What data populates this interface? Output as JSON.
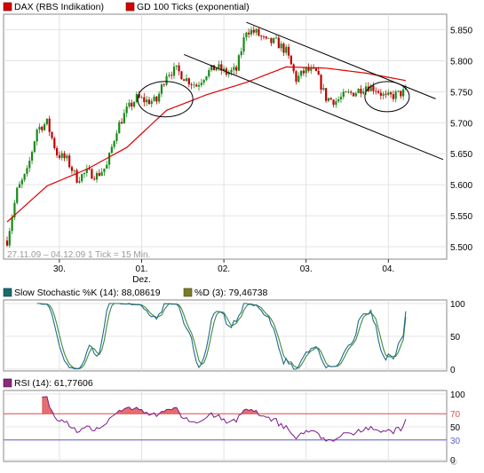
{
  "charts": {
    "price": {
      "legend": [
        {
          "label": "DAX (RBS Indikation)",
          "color": "#d40000"
        },
        {
          "label": "GD 100 Ticks (exponential)",
          "color": "#d40000"
        }
      ],
      "y_ticks": [
        "5.850",
        "5.800",
        "5.750",
        "5.700",
        "5.650",
        "5.600",
        "5.550",
        "5.500"
      ],
      "x_ticks": [
        "30.",
        "01.",
        "02.",
        "03.",
        "04."
      ],
      "x_sublabel": "Dez.",
      "info": "27.11.09 – 04.12.09  1 Tick = 15 Min.",
      "watermark": "©",
      "colors": {
        "up": "#1a8a1a",
        "down": "#c00000",
        "ma": "#dd0000",
        "grid": "#dcdcdc",
        "frame": "#8a8a8a"
      }
    },
    "stochastic": {
      "legend": [
        {
          "label": "Slow Stochastic %K (14): 88,08619",
          "color": "#1a6b6b"
        },
        {
          "label": "%D (3): 79,46738",
          "color": "#7a7a2a"
        }
      ],
      "y_ticks": [
        "100",
        "50",
        "0"
      ],
      "colors": {
        "k": "#1f6b8a",
        "d": "#3d8a3d"
      }
    },
    "rsi": {
      "legend": [
        {
          "label": "RSI (14): 61,77606",
          "color": "#8a2a7a"
        }
      ],
      "y_ticks": [
        "100",
        "70",
        "50",
        "30",
        "0"
      ],
      "colors": {
        "line": "#7a1a8a",
        "upper": "#e05050",
        "lower": "#6060d0",
        "fill": "#e05050"
      }
    }
  },
  "chart_data": [
    {
      "type": "line",
      "title": "DAX (RBS Indikation)",
      "xlabel": "",
      "ylabel": "",
      "x_categories": [
        "30.",
        "01.",
        "02.",
        "03.",
        "04."
      ],
      "ylim": [
        5480,
        5875
      ],
      "series": [
        {
          "name": "DAX (RBS Indikation)",
          "style": "candlestick-15min",
          "x": [
            0,
            4,
            8,
            12,
            16,
            20,
            24,
            28,
            32,
            36,
            40,
            44,
            48,
            52,
            56,
            60,
            64,
            68,
            72,
            76,
            80,
            84,
            88,
            92,
            96,
            100,
            104,
            108,
            112,
            116,
            120,
            124,
            128,
            132,
            136,
            140,
            144,
            148,
            152,
            156,
            160
          ],
          "y": [
            5510,
            5590,
            5620,
            5690,
            5700,
            5650,
            5640,
            5610,
            5620,
            5615,
            5630,
            5690,
            5720,
            5740,
            5735,
            5735,
            5780,
            5785,
            5770,
            5760,
            5780,
            5790,
            5780,
            5785,
            5850,
            5845,
            5830,
            5830,
            5815,
            5770,
            5785,
            5780,
            5740,
            5735,
            5745,
            5750,
            5760,
            5755,
            5740,
            5745,
            5750
          ]
        },
        {
          "name": "GD 100 Ticks (exponential)",
          "x": [
            0,
            16,
            32,
            48,
            64,
            80,
            96,
            112,
            128,
            144,
            160
          ],
          "y": [
            5540,
            5598,
            5625,
            5660,
            5720,
            5745,
            5765,
            5790,
            5788,
            5780,
            5768
          ]
        }
      ],
      "trend_channels": [
        {
          "upper": [
            [
              96,
              5862
            ],
            [
              160,
              5758
            ]
          ],
          "lower": [
            [
              71,
              5810
            ],
            [
              160,
              5665
            ]
          ]
        }
      ],
      "grid": true,
      "legend": "top-left"
    },
    {
      "type": "line",
      "title": "Slow Stochastic",
      "ylim": [
        0,
        100
      ],
      "series": [
        {
          "name": "Slow Stochastic %K (14): 88,08619"
        },
        {
          "name": "%D (3): 79,46738"
        }
      ],
      "last_values": {
        "k": 88.08619,
        "d": 79.46738
      },
      "grid": true,
      "legend": "top-left"
    },
    {
      "type": "line",
      "title": "RSI",
      "ylim": [
        0,
        100
      ],
      "levels": [
        70,
        30
      ],
      "series": [
        {
          "name": "RSI (14): 61,77606"
        }
      ],
      "last_value": 61.77606,
      "grid": true,
      "legend": "top-left"
    }
  ]
}
